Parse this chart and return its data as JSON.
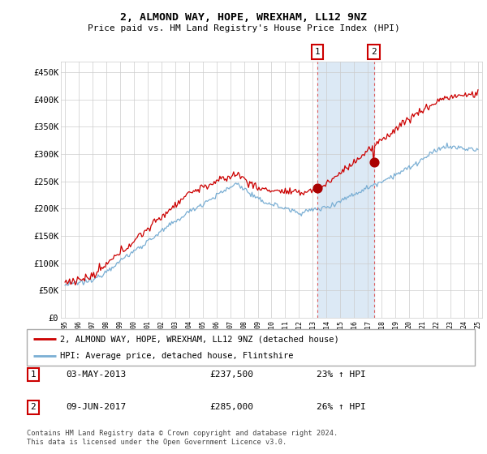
{
  "title": "2, ALMOND WAY, HOPE, WREXHAM, LL12 9NZ",
  "subtitle": "Price paid vs. HM Land Registry's House Price Index (HPI)",
  "ylabel_ticks": [
    "£0",
    "£50K",
    "£100K",
    "£150K",
    "£200K",
    "£250K",
    "£300K",
    "£350K",
    "£400K",
    "£450K"
  ],
  "ytick_values": [
    0,
    50000,
    100000,
    150000,
    200000,
    250000,
    300000,
    350000,
    400000,
    450000
  ],
  "ylim": [
    0,
    470000
  ],
  "year_start": 1995,
  "year_end": 2025,
  "sale1_date": 2013.33,
  "sale1_price": 237500,
  "sale1_label": "1",
  "sale1_text": "03-MAY-2013",
  "sale1_amount": "£237,500",
  "sale1_pct": "23% ↑ HPI",
  "sale2_date": 2017.44,
  "sale2_price": 285000,
  "sale2_label": "2",
  "sale2_text": "09-JUN-2017",
  "sale2_amount": "£285,000",
  "sale2_pct": "26% ↑ HPI",
  "line1_color": "#cc0000",
  "line2_color": "#7bafd4",
  "highlight_color": "#dce9f5",
  "vline_color": "#dd4444",
  "legend1_label": "2, ALMOND WAY, HOPE, WREXHAM, LL12 9NZ (detached house)",
  "legend2_label": "HPI: Average price, detached house, Flintshire",
  "footer1": "Contains HM Land Registry data © Crown copyright and database right 2024.",
  "footer2": "This data is licensed under the Open Government Licence v3.0.",
  "background_color": "#ffffff",
  "plot_bg_color": "#ffffff",
  "grid_color": "#cccccc",
  "sale_dot_color": "#aa0000",
  "sale_dot_size": 60
}
